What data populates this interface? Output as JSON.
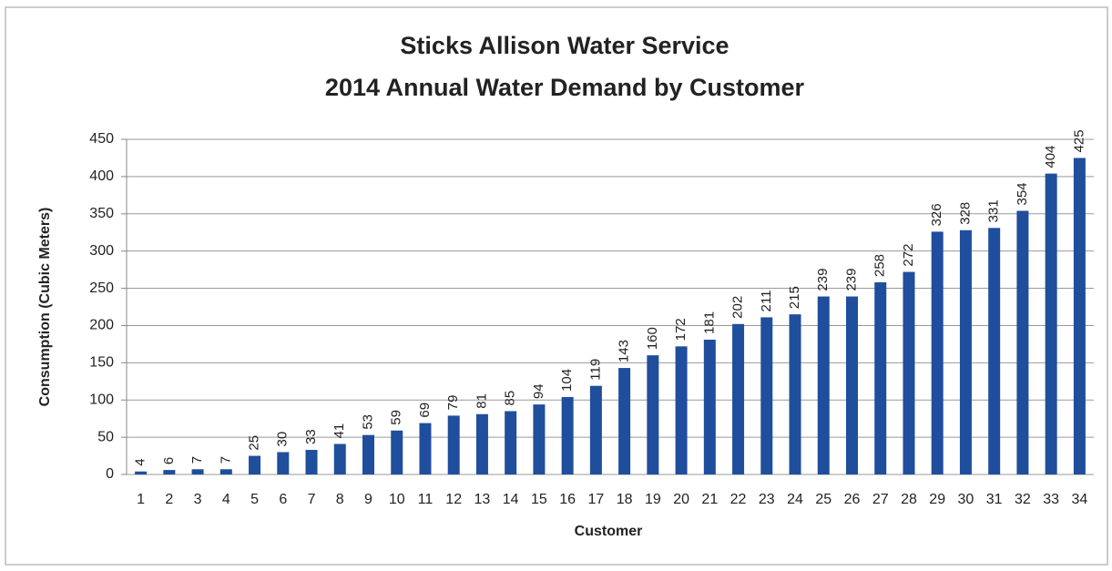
{
  "chart_data": {
    "type": "bar",
    "title": "Sticks Allison Water Service",
    "subtitle": "2014 Annual Water Demand by Customer",
    "x_label": "Customer",
    "y_label": "Consumption (Cubic Meters)",
    "categories": [
      "1",
      "2",
      "3",
      "4",
      "5",
      "6",
      "7",
      "8",
      "9",
      "10",
      "11",
      "12",
      "13",
      "14",
      "15",
      "16",
      "17",
      "18",
      "19",
      "20",
      "21",
      "22",
      "23",
      "24",
      "25",
      "26",
      "27",
      "28",
      "29",
      "30",
      "31",
      "32",
      "33",
      "34"
    ],
    "values": [
      4,
      6,
      7,
      7,
      25,
      30,
      33,
      41,
      53,
      59,
      69,
      79,
      81,
      85,
      94,
      104,
      119,
      143,
      160,
      172,
      181,
      202,
      211,
      215,
      239,
      239,
      258,
      272,
      326,
      328,
      331,
      354,
      404,
      425
    ],
    "color": "#1f4e9c",
    "ylim": [
      0,
      450
    ],
    "yticks": [
      0,
      50,
      100,
      150,
      200,
      250,
      300,
      350,
      400,
      450
    ],
    "grid": true
  }
}
